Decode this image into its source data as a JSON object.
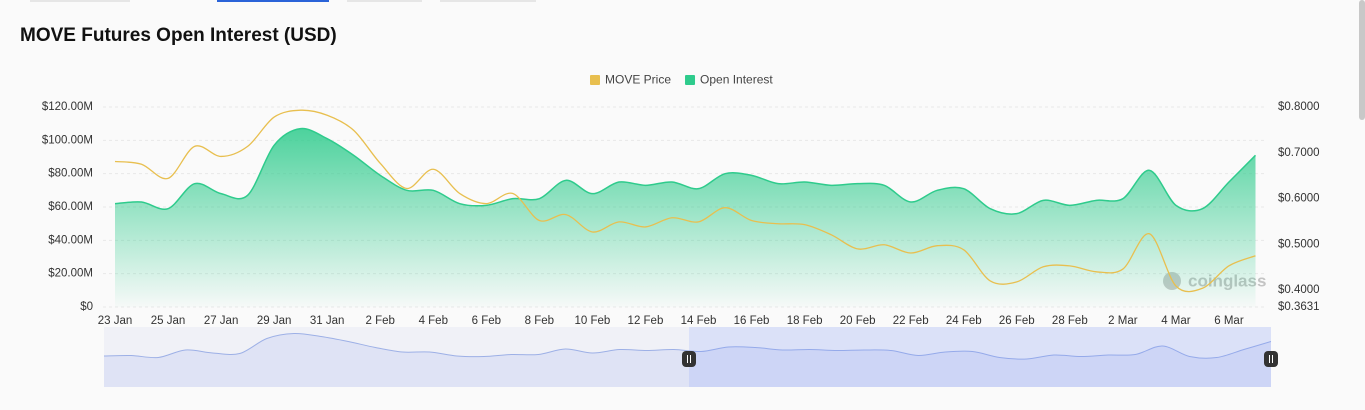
{
  "chart_data": {
    "type": "line",
    "title": "MOVE Futures Open Interest (USD)",
    "watermark": "coinglass",
    "legend": "top",
    "grid": true,
    "categories": [
      "23 Jan",
      null,
      "25 Jan",
      null,
      "27 Jan",
      null,
      "29 Jan",
      null,
      "31 Jan",
      null,
      "2 Feb",
      null,
      "4 Feb",
      null,
      "6 Feb",
      null,
      "8 Feb",
      null,
      "10 Feb",
      null,
      "12 Feb",
      null,
      "14 Feb",
      null,
      "16 Feb",
      null,
      "18 Feb",
      null,
      "20 Feb",
      null,
      "22 Feb",
      null,
      "24 Feb",
      null,
      "26 Feb",
      null,
      "28 Feb",
      null,
      "2 Mar",
      null,
      "4 Mar",
      null,
      "6 Mar",
      null
    ],
    "series": [
      {
        "name": "MOVE Price",
        "color": "#e8bf4f",
        "axis": "y2",
        "values": [
          0.681,
          0.675,
          0.644,
          0.714,
          0.692,
          0.714,
          0.778,
          0.793,
          0.782,
          0.749,
          0.677,
          0.622,
          0.664,
          0.611,
          0.589,
          0.611,
          0.552,
          0.565,
          0.527,
          0.549,
          0.538,
          0.558,
          0.549,
          0.58,
          0.552,
          0.545,
          0.543,
          0.521,
          0.49,
          0.499,
          0.481,
          0.497,
          0.488,
          0.42,
          0.418,
          0.451,
          0.453,
          0.44,
          0.446,
          0.523,
          0.409,
          0.404,
          0.453,
          0.475
        ]
      },
      {
        "name": "Open Interest",
        "color": "#2ecb8c",
        "axis": "y",
        "values": [
          62000000,
          63000000,
          59000000,
          74000000,
          68000000,
          67000000,
          97000000,
          107000000,
          101000000,
          91000000,
          79000000,
          70000000,
          70000000,
          62000000,
          61000000,
          65000000,
          65000000,
          76000000,
          68000000,
          75000000,
          73000000,
          75000000,
          71000000,
          80000000,
          79000000,
          74000000,
          75000000,
          73000000,
          74000000,
          73000000,
          63000000,
          70000000,
          71000000,
          59000000,
          56000000,
          64000000,
          61000000,
          64000000,
          65000000,
          82000000,
          61000000,
          59000000,
          75000000,
          91000000
        ]
      }
    ],
    "ylim": [
      0,
      120000000
    ],
    "yticks": [
      {
        "value": 0,
        "label": "$0"
      },
      {
        "value": 20000000,
        "label": "$20.00M"
      },
      {
        "value": 40000000,
        "label": "$40.00M"
      },
      {
        "value": 60000000,
        "label": "$60.00M"
      },
      {
        "value": 80000000,
        "label": "$80.00M"
      },
      {
        "value": 100000000,
        "label": "$100.00M"
      },
      {
        "value": 120000000,
        "label": "$120.00M"
      }
    ],
    "y2lim": [
      0.3631,
      0.8
    ],
    "y2ticks": [
      {
        "value": 0.3631,
        "label": "$0.3631"
      },
      {
        "value": 0.4,
        "label": "$0.4000"
      },
      {
        "value": 0.5,
        "label": "$0.5000"
      },
      {
        "value": 0.6,
        "label": "$0.6000"
      },
      {
        "value": 0.7,
        "label": "$0.7000"
      },
      {
        "value": 0.8,
        "label": "$0.8000"
      }
    ]
  }
}
